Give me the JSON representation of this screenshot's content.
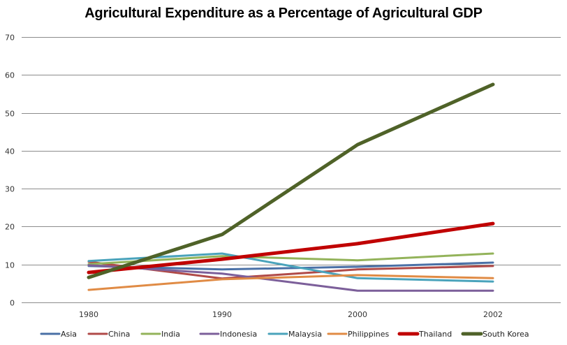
{
  "chart_data": {
    "type": "line",
    "title": "Agricultural Expenditure as a Percentage of Agricultural GDP",
    "xlabel": "",
    "ylabel": "",
    "categories": [
      "1980",
      "1990",
      "2000",
      "2002"
    ],
    "ylim": [
      0,
      70
    ],
    "yticks": [
      0,
      10,
      20,
      30,
      40,
      50,
      60,
      70
    ],
    "grid": true,
    "legend_position": "bottom",
    "series": [
      {
        "name": "Asia",
        "color": "#4a70a6",
        "values": [
          9.6,
          8.7,
          9.4,
          10.5
        ],
        "emphasis": false
      },
      {
        "name": "China",
        "color": "#b04a48",
        "values": [
          10.7,
          6.3,
          8.7,
          9.6
        ],
        "emphasis": false
      },
      {
        "name": "India",
        "color": "#93b35a",
        "values": [
          10.1,
          12.2,
          11.1,
          12.9
        ],
        "emphasis": false
      },
      {
        "name": "Indonesia",
        "color": "#7c5f9a",
        "values": [
          9.8,
          7.6,
          3.1,
          3.1
        ],
        "emphasis": false
      },
      {
        "name": "Malaysia",
        "color": "#4aa3bb",
        "values": [
          10.9,
          12.9,
          6.4,
          5.5
        ],
        "emphasis": false
      },
      {
        "name": "Philippines",
        "color": "#e08b45",
        "values": [
          3.3,
          6.1,
          7.2,
          6.4
        ],
        "emphasis": false
      },
      {
        "name": "Thailand",
        "color": "#c00000",
        "values": [
          7.9,
          11.4,
          15.5,
          20.8
        ],
        "emphasis": true
      },
      {
        "name": "South Korea",
        "color": "#4f6228",
        "values": [
          6.6,
          17.9,
          41.6,
          57.5
        ],
        "emphasis": true
      }
    ]
  }
}
